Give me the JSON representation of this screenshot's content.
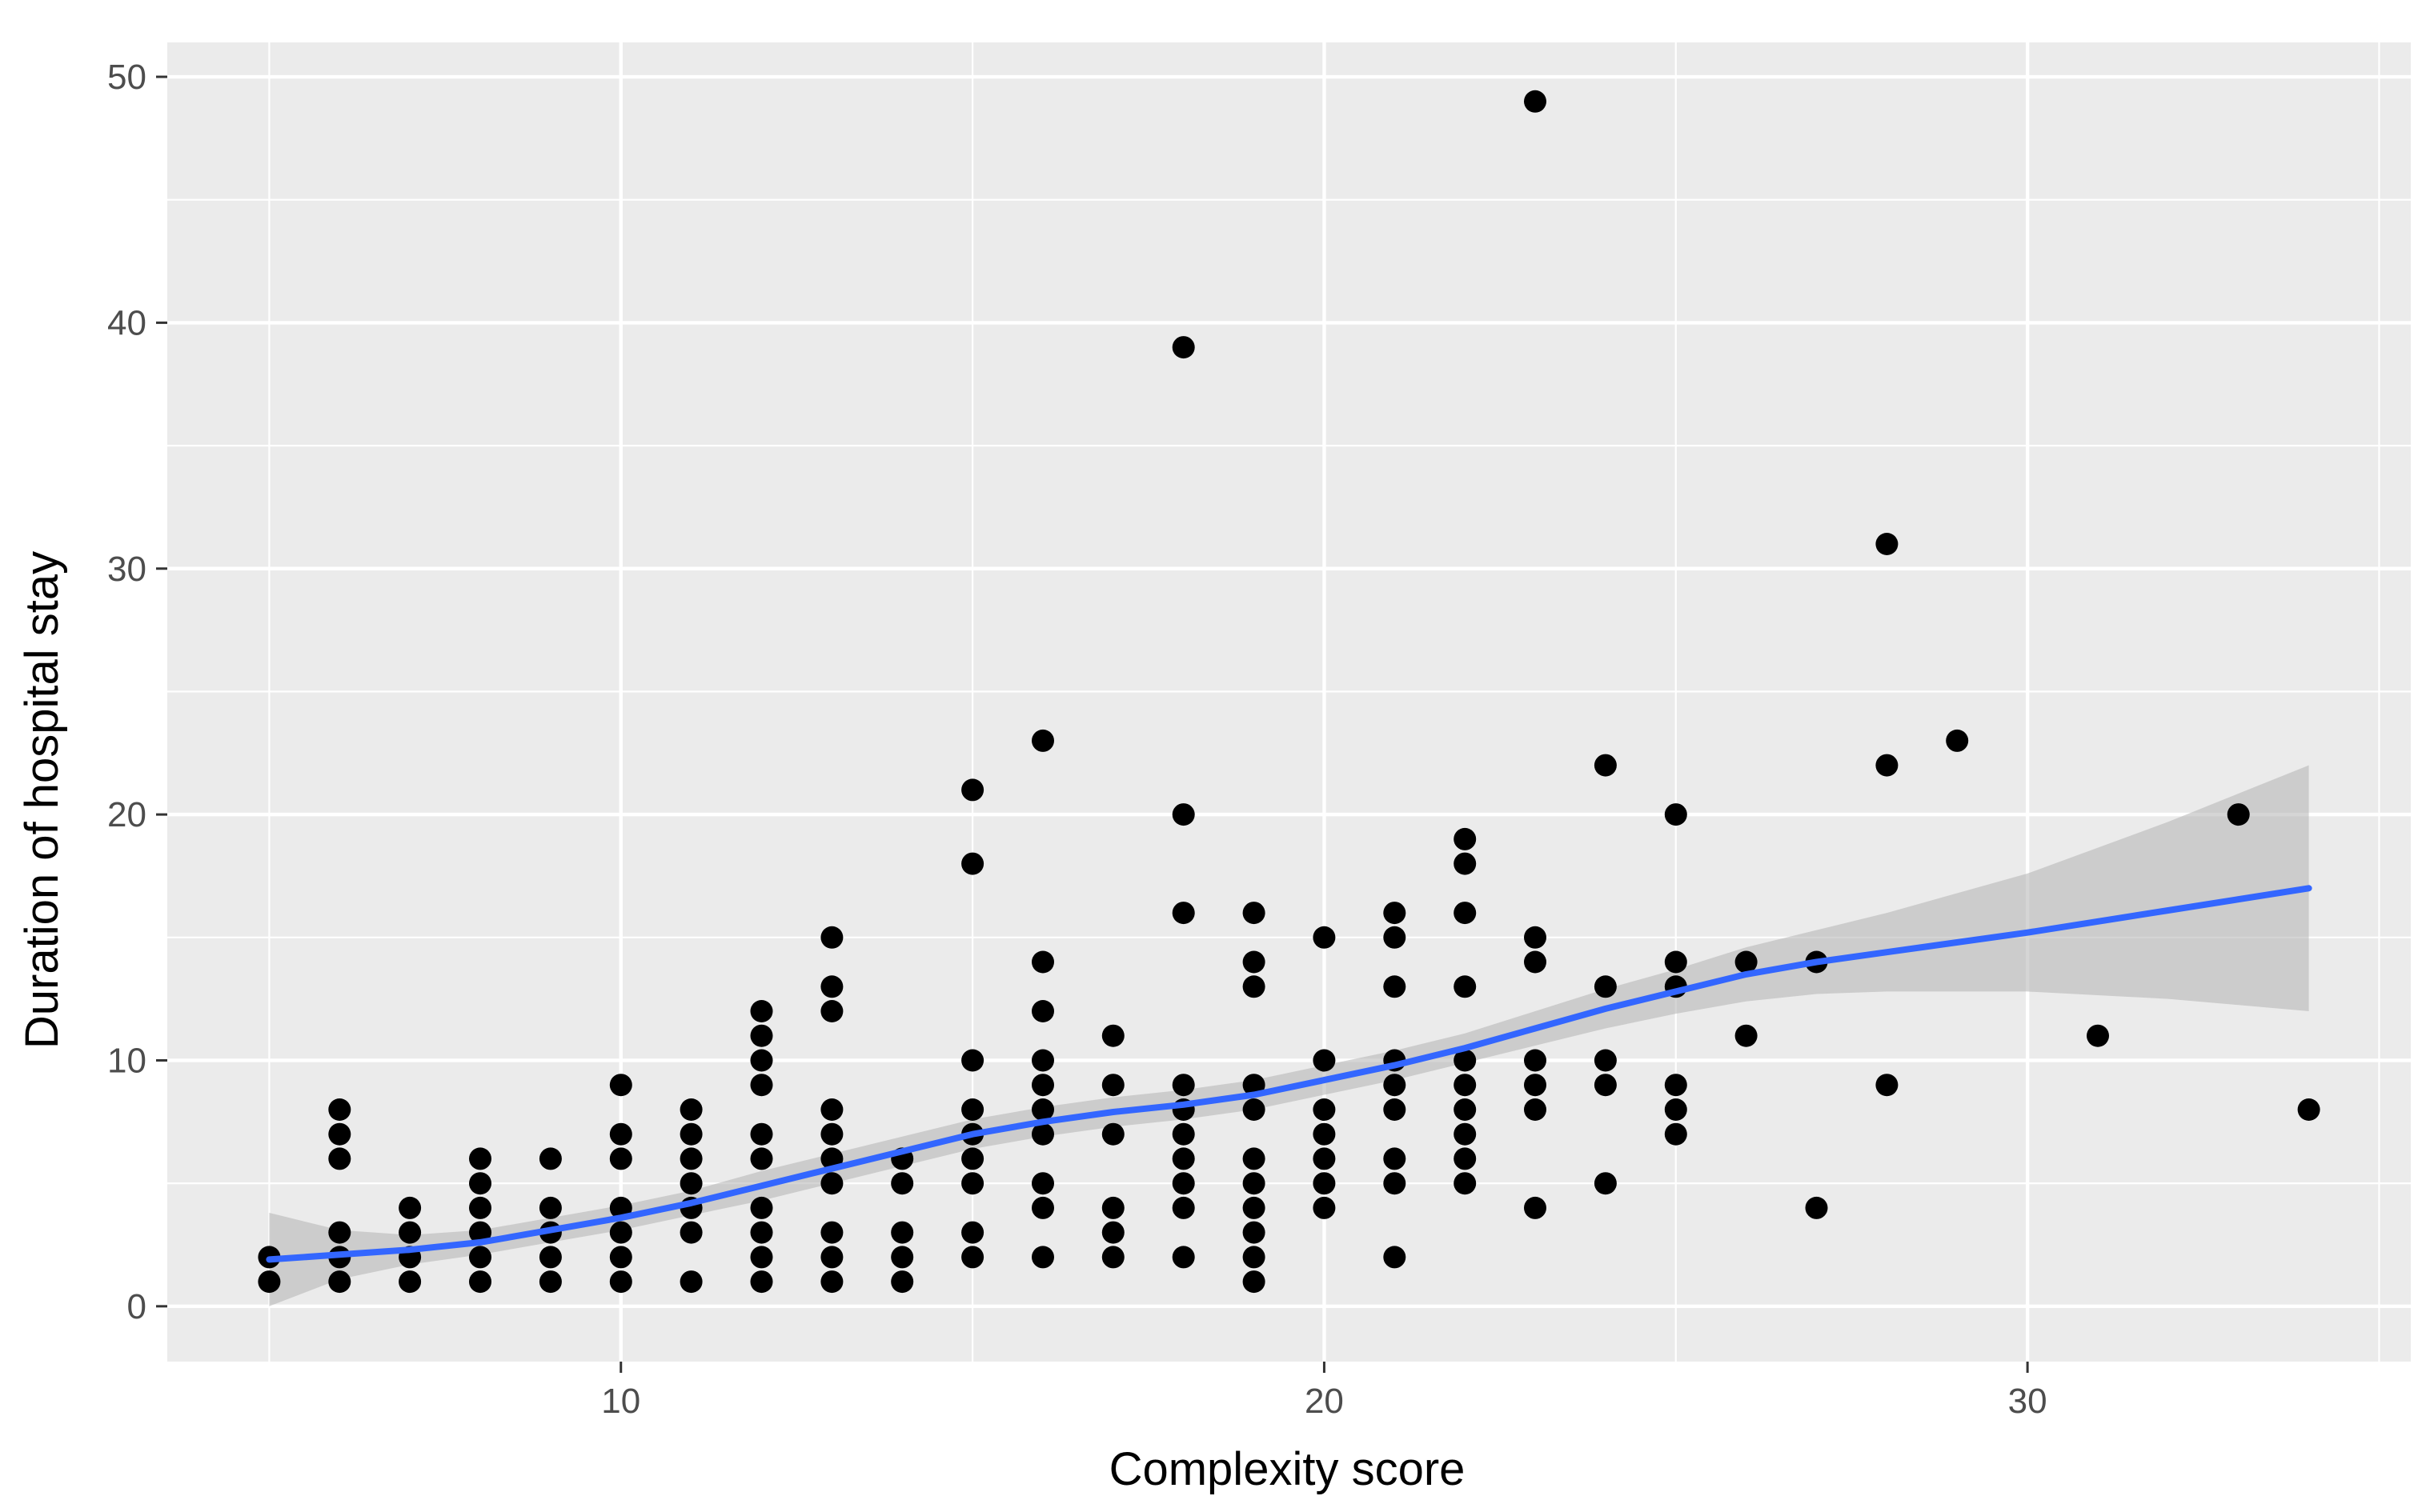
{
  "chart_data": {
    "type": "scatter",
    "xlabel": "Complexity score",
    "ylabel": "Duration of hospital stay",
    "xlim": [
      3.55,
      35.45
    ],
    "ylim": [
      -2.25,
      51.4
    ],
    "x_ticks": [
      10,
      20,
      30
    ],
    "x_tick_labels": [
      "10",
      "20",
      "30"
    ],
    "y_ticks": [
      0,
      10,
      20,
      30,
      40,
      50
    ],
    "y_tick_labels": [
      "0",
      "10",
      "20",
      "30",
      "40",
      "50"
    ],
    "grid": true,
    "legend": "none",
    "colors": {
      "panel": "#ebebeb",
      "grid": "#ffffff",
      "points": "#000000",
      "smooth_line": "#3366ff",
      "confidence_band": "#b3b3b3"
    },
    "points": [
      [
        5,
        1
      ],
      [
        5,
        2
      ],
      [
        6,
        1
      ],
      [
        6,
        2
      ],
      [
        6,
        3
      ],
      [
        6,
        6
      ],
      [
        6,
        7
      ],
      [
        6,
        8
      ],
      [
        7,
        1
      ],
      [
        7,
        2
      ],
      [
        7,
        3
      ],
      [
        7,
        4
      ],
      [
        8,
        1
      ],
      [
        8,
        2
      ],
      [
        8,
        3
      ],
      [
        8,
        4
      ],
      [
        8,
        5
      ],
      [
        8,
        6
      ],
      [
        9,
        1
      ],
      [
        9,
        2
      ],
      [
        9,
        3
      ],
      [
        9,
        4
      ],
      [
        9,
        6
      ],
      [
        10,
        1
      ],
      [
        10,
        2
      ],
      [
        10,
        3
      ],
      [
        10,
        4
      ],
      [
        10,
        6
      ],
      [
        10,
        7
      ],
      [
        10,
        9
      ],
      [
        11,
        1
      ],
      [
        11,
        3
      ],
      [
        11,
        4
      ],
      [
        11,
        5
      ],
      [
        11,
        6
      ],
      [
        11,
        7
      ],
      [
        11,
        8
      ],
      [
        12,
        1
      ],
      [
        12,
        2
      ],
      [
        12,
        3
      ],
      [
        12,
        4
      ],
      [
        12,
        6
      ],
      [
        12,
        7
      ],
      [
        12,
        9
      ],
      [
        12,
        10
      ],
      [
        12,
        11
      ],
      [
        12,
        12
      ],
      [
        13,
        1
      ],
      [
        13,
        2
      ],
      [
        13,
        3
      ],
      [
        13,
        5
      ],
      [
        13,
        6
      ],
      [
        13,
        7
      ],
      [
        13,
        8
      ],
      [
        13,
        12
      ],
      [
        13,
        13
      ],
      [
        13,
        15
      ],
      [
        14,
        1
      ],
      [
        14,
        2
      ],
      [
        14,
        3
      ],
      [
        14,
        5
      ],
      [
        14,
        6
      ],
      [
        15,
        2
      ],
      [
        15,
        3
      ],
      [
        15,
        5
      ],
      [
        15,
        6
      ],
      [
        15,
        7
      ],
      [
        15,
        8
      ],
      [
        15,
        10
      ],
      [
        15,
        18
      ],
      [
        15,
        21
      ],
      [
        16,
        2
      ],
      [
        16,
        4
      ],
      [
        16,
        5
      ],
      [
        16,
        7
      ],
      [
        16,
        8
      ],
      [
        16,
        9
      ],
      [
        16,
        10
      ],
      [
        16,
        12
      ],
      [
        16,
        14
      ],
      [
        16,
        23
      ],
      [
        17,
        2
      ],
      [
        17,
        3
      ],
      [
        17,
        4
      ],
      [
        17,
        7
      ],
      [
        17,
        9
      ],
      [
        17,
        11
      ],
      [
        18,
        2
      ],
      [
        18,
        4
      ],
      [
        18,
        5
      ],
      [
        18,
        6
      ],
      [
        18,
        7
      ],
      [
        18,
        8
      ],
      [
        18,
        9
      ],
      [
        18,
        16
      ],
      [
        18,
        20
      ],
      [
        18,
        39
      ],
      [
        19,
        1
      ],
      [
        19,
        2
      ],
      [
        19,
        3
      ],
      [
        19,
        4
      ],
      [
        19,
        5
      ],
      [
        19,
        6
      ],
      [
        19,
        8
      ],
      [
        19,
        9
      ],
      [
        19,
        13
      ],
      [
        19,
        14
      ],
      [
        19,
        16
      ],
      [
        20,
        4
      ],
      [
        20,
        5
      ],
      [
        20,
        6
      ],
      [
        20,
        7
      ],
      [
        20,
        8
      ],
      [
        20,
        10
      ],
      [
        20,
        15
      ],
      [
        21,
        2
      ],
      [
        21,
        5
      ],
      [
        21,
        6
      ],
      [
        21,
        8
      ],
      [
        21,
        9
      ],
      [
        21,
        10
      ],
      [
        21,
        13
      ],
      [
        21,
        15
      ],
      [
        21,
        16
      ],
      [
        22,
        5
      ],
      [
        22,
        6
      ],
      [
        22,
        7
      ],
      [
        22,
        8
      ],
      [
        22,
        9
      ],
      [
        22,
        10
      ],
      [
        22,
        13
      ],
      [
        22,
        16
      ],
      [
        22,
        18
      ],
      [
        22,
        19
      ],
      [
        23,
        4
      ],
      [
        23,
        8
      ],
      [
        23,
        9
      ],
      [
        23,
        10
      ],
      [
        23,
        14
      ],
      [
        23,
        15
      ],
      [
        23,
        49
      ],
      [
        24,
        5
      ],
      [
        24,
        9
      ],
      [
        24,
        10
      ],
      [
        24,
        13
      ],
      [
        24,
        22
      ],
      [
        25,
        7
      ],
      [
        25,
        8
      ],
      [
        25,
        9
      ],
      [
        25,
        13
      ],
      [
        25,
        14
      ],
      [
        25,
        20
      ],
      [
        26,
        11
      ],
      [
        26,
        14
      ],
      [
        27,
        4
      ],
      [
        27,
        14
      ],
      [
        28,
        9
      ],
      [
        28,
        22
      ],
      [
        28,
        31
      ],
      [
        29,
        23
      ],
      [
        31,
        11
      ],
      [
        33,
        20
      ],
      [
        34,
        8
      ]
    ],
    "smooth": {
      "x": [
        5,
        6,
        7,
        8,
        9,
        10,
        11,
        12,
        13,
        14,
        15,
        16,
        17,
        18,
        19,
        20,
        21,
        22,
        23,
        24,
        25,
        26,
        27,
        28,
        30,
        32,
        34
      ],
      "y": [
        1.9,
        2.1,
        2.3,
        2.6,
        3.1,
        3.6,
        4.2,
        4.9,
        5.6,
        6.3,
        7.0,
        7.5,
        7.9,
        8.2,
        8.6,
        9.2,
        9.8,
        10.5,
        11.3,
        12.1,
        12.8,
        13.5,
        14.0,
        14.4,
        15.2,
        16.1,
        17.0
      ],
      "lower": [
        0.0,
        1.1,
        1.7,
        2.1,
        2.6,
        3.1,
        3.7,
        4.3,
        5.0,
        5.7,
        6.4,
        6.9,
        7.3,
        7.6,
        8.0,
        8.6,
        9.2,
        9.9,
        10.6,
        11.3,
        11.9,
        12.4,
        12.7,
        12.8,
        12.8,
        12.5,
        12.0
      ],
      "upper": [
        3.8,
        3.1,
        2.9,
        3.1,
        3.6,
        4.1,
        4.7,
        5.5,
        6.2,
        6.9,
        7.6,
        8.1,
        8.5,
        8.8,
        9.2,
        9.8,
        10.4,
        11.1,
        12.0,
        12.9,
        13.7,
        14.6,
        15.3,
        16.0,
        17.6,
        19.7,
        22.0
      ]
    }
  }
}
